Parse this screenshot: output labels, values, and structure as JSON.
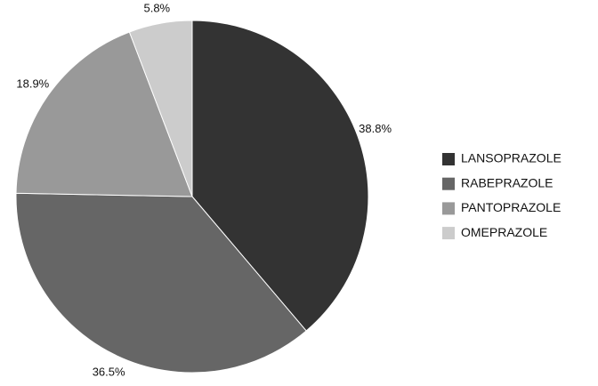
{
  "chart_data": {
    "type": "pie",
    "categories": [
      "LANSOPRAZOLE",
      "RABEPRAZOLE",
      "PANTOPRAZOLE",
      "OMEPRAZOLE"
    ],
    "values": [
      38.8,
      36.5,
      18.9,
      5.8
    ],
    "value_labels": [
      "38.8%",
      "36.5%",
      "18.9%",
      "5.8%"
    ],
    "colors": [
      "#333333",
      "#666666",
      "#999999",
      "#cccccc"
    ],
    "legend": "right"
  }
}
